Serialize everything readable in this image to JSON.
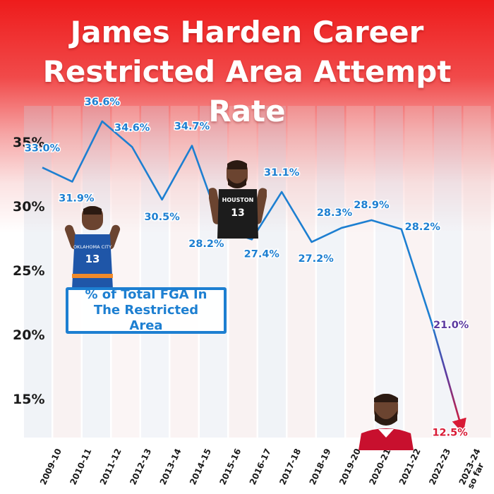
{
  "title": {
    "line1": "James Harden Career",
    "line2": "Restricted Area Attempt Rate"
  },
  "legend": {
    "label": "% of Total FGA In The Restricted Area",
    "color": "#1d7fd1"
  },
  "colors": {
    "header_red": "#ee1c1c",
    "line_blue": "#1d7fd1",
    "line_purple": "#5c3aa0",
    "line_red": "#d81a35",
    "label_red": "#d81a35"
  },
  "photos": [
    {
      "name": "thunder-jersey-player-photo",
      "jersey_text": "OKLAHOMA CITY",
      "jersey_number": "13"
    },
    {
      "name": "rockets-jersey-player-photo",
      "jersey_text": "HOUSTON",
      "jersey_number": "13"
    },
    {
      "name": "sixers-jersey-player-photo"
    }
  ],
  "chart_data": {
    "type": "line",
    "title": "James Harden Career Restricted Area Attempt Rate",
    "xlabel": "",
    "ylabel": "",
    "categories": [
      "2009-10",
      "2010-11",
      "2011-12",
      "2012-13",
      "2013-14",
      "2014-15",
      "2015-16",
      "2016-17",
      "2017-18",
      "2018-19",
      "2019-20",
      "2020-21",
      "2021-22",
      "2022-23",
      "2023-24 so far"
    ],
    "series": [
      {
        "name": "% of Total FGA In The Restricted Area",
        "values": [
          33.0,
          31.9,
          36.6,
          34.6,
          30.5,
          34.7,
          28.2,
          27.4,
          31.1,
          27.2,
          28.3,
          28.9,
          28.2,
          21.0,
          12.5
        ],
        "labels": [
          "33.0%",
          "31.9%",
          "36.6%",
          "34.6%",
          "30.5%",
          "34.7%",
          "28.2%",
          "27.4%",
          "31.1%",
          "27.2%",
          "28.3%",
          "28.9%",
          "28.2%",
          "21.0%",
          "12.5%"
        ]
      }
    ],
    "yticks": [
      15,
      20,
      25,
      30,
      35
    ],
    "ytick_labels": [
      "15%",
      "20%",
      "25%",
      "30%",
      "35%"
    ],
    "ylim": [
      11,
      37.5
    ],
    "grid": false,
    "legend_position": "left"
  }
}
